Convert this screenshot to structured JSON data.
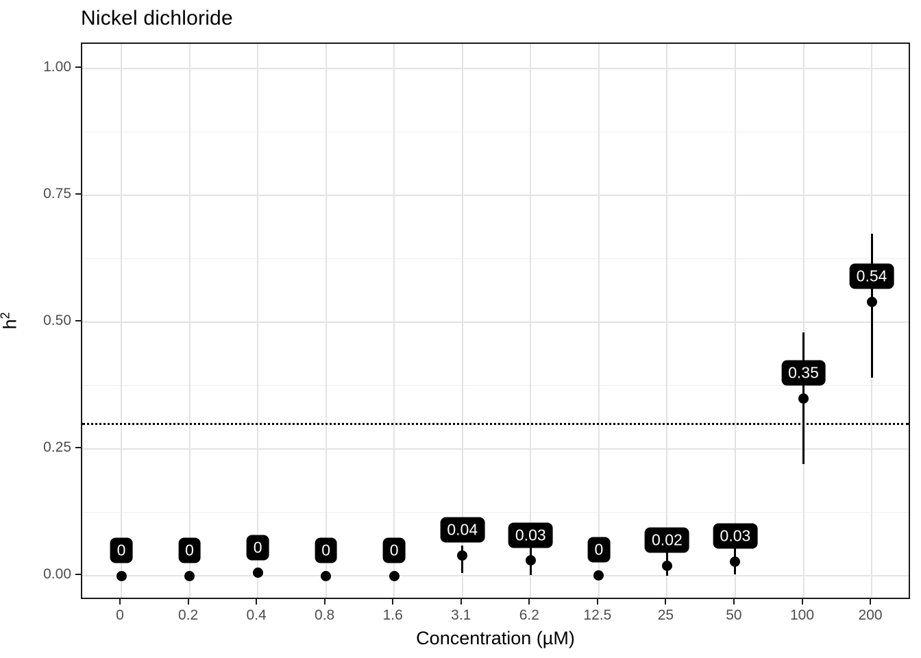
{
  "title": "Nickel dichloride",
  "axes": {
    "x_title": "Concentration (µM)",
    "y_title_base": "h",
    "y_title_exponent": "2"
  },
  "chart_data": {
    "type": "scatter",
    "title": "Nickel dichloride",
    "xlabel": "Concentration (µM)",
    "ylabel": "h2",
    "ylim": [
      0,
      1
    ],
    "grid": true,
    "legend": false,
    "categories": [
      "0",
      "0.2",
      "0.4",
      "0.8",
      "1.6",
      "3.1",
      "6.2",
      "12.5",
      "25",
      "50",
      "100",
      "200"
    ],
    "y_ticks": [
      {
        "value": 0.0,
        "label": "0.00"
      },
      {
        "value": 0.25,
        "label": "0.25"
      },
      {
        "value": 0.5,
        "label": "0.50"
      },
      {
        "value": 0.75,
        "label": "0.75"
      },
      {
        "value": 1.0,
        "label": "1.00"
      }
    ],
    "y_minor_ticks": [
      0.125,
      0.375,
      0.625,
      0.875
    ],
    "reference_line": {
      "y": 0.3,
      "style": "dotted",
      "color": "#000000"
    },
    "label_offset_y": 0.05,
    "points": [
      {
        "x": "0",
        "y": 0.0,
        "ci_low": 0.0,
        "ci_high": 0.0,
        "label": "0"
      },
      {
        "x": "0.2",
        "y": 0.0,
        "ci_low": 0.0,
        "ci_high": 0.0,
        "label": "0"
      },
      {
        "x": "0.4",
        "y": 0.006,
        "ci_low": 0.0,
        "ci_high": 0.012,
        "label": "0"
      },
      {
        "x": "0.8",
        "y": 0.0,
        "ci_low": 0.0,
        "ci_high": 0.0,
        "label": "0"
      },
      {
        "x": "1.6",
        "y": 0.0,
        "ci_low": 0.0,
        "ci_high": 0.0,
        "label": "0"
      },
      {
        "x": "3.1",
        "y": 0.04,
        "ci_low": 0.005,
        "ci_high": 0.06,
        "label": "0.04"
      },
      {
        "x": "6.2",
        "y": 0.03,
        "ci_low": 0.002,
        "ci_high": 0.055,
        "label": "0.03"
      },
      {
        "x": "12.5",
        "y": 0.001,
        "ci_low": 0.0,
        "ci_high": 0.002,
        "label": "0"
      },
      {
        "x": "25",
        "y": 0.02,
        "ci_low": 0.0,
        "ci_high": 0.05,
        "label": "0.02"
      },
      {
        "x": "50",
        "y": 0.028,
        "ci_low": 0.003,
        "ci_high": 0.055,
        "label": "0.03"
      },
      {
        "x": "100",
        "y": 0.35,
        "ci_low": 0.22,
        "ci_high": 0.48,
        "label": "0.35"
      },
      {
        "x": "200",
        "y": 0.54,
        "ci_low": 0.39,
        "ci_high": 0.675,
        "label": "0.54"
      }
    ],
    "colors": {
      "point": "#000000",
      "error_bar": "#000000",
      "label_background": "#000000",
      "label_text": "#ffffff",
      "grid_major": "#e3e3e3",
      "grid_minor": "#eeeeee",
      "panel_border": "#1a1a1a",
      "tick_label": "#4d4d4d",
      "title_text": "#000000"
    }
  }
}
